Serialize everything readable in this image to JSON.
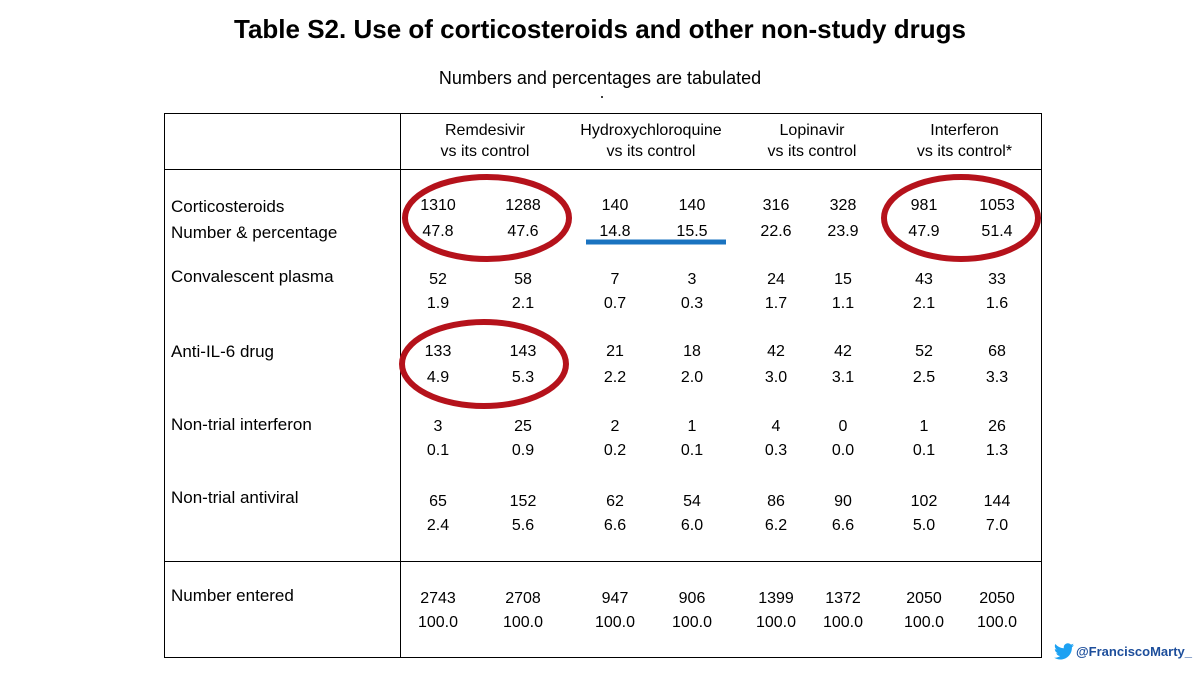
{
  "title": "Table S2. Use of corticosteroids and other non-study drugs",
  "subtitle": "Numbers and percentages are tabulated",
  "columns": [
    {
      "line1": "Remdesivir",
      "line2": "vs its control"
    },
    {
      "line1": "Hydroxychloroquine",
      "line2": "vs its control"
    },
    {
      "line1": "Lopinavir",
      "line2": "vs its control"
    },
    {
      "line1": "Interferon",
      "line2": "vs its control*"
    }
  ],
  "rows": [
    {
      "label": "Corticosteroids",
      "label2": "Number & percentage",
      "n": [
        "1310",
        "1288",
        "140",
        "140",
        "316",
        "328",
        "981",
        "1053"
      ],
      "p": [
        "47.8",
        "47.6",
        "14.8",
        "15.5",
        "22.6",
        "23.9",
        "47.9",
        "51.4"
      ]
    },
    {
      "label": "Convalescent plasma",
      "n": [
        "52",
        "58",
        "7",
        "3",
        "24",
        "15",
        "43",
        "33"
      ],
      "p": [
        "1.9",
        "2.1",
        "0.7",
        "0.3",
        "1.7",
        "1.1",
        "2.1",
        "1.6"
      ]
    },
    {
      "label": "Anti-IL-6 drug",
      "n": [
        "133",
        "143",
        "21",
        "18",
        "42",
        "42",
        "52",
        "68"
      ],
      "p": [
        "4.9",
        "5.3",
        "2.2",
        "2.0",
        "3.0",
        "3.1",
        "2.5",
        "3.3"
      ]
    },
    {
      "label": "Non-trial interferon",
      "n": [
        "3",
        "25",
        "2",
        "1",
        "4",
        "0",
        "1",
        "26"
      ],
      "p": [
        "0.1",
        "0.9",
        "0.2",
        "0.1",
        "0.3",
        "0.0",
        "0.1",
        "1.3"
      ]
    },
    {
      "label": "Non-trial antiviral",
      "n": [
        "65",
        "152",
        "62",
        "54",
        "86",
        "90",
        "102",
        "144"
      ],
      "p": [
        "2.4",
        "5.6",
        "6.6",
        "6.0",
        "6.2",
        "6.6",
        "5.0",
        "7.0"
      ]
    },
    {
      "label": "Number entered",
      "n": [
        "2743",
        "2708",
        "947",
        "906",
        "1399",
        "1372",
        "2050",
        "2050"
      ],
      "p": [
        "100.0",
        "100.0",
        "100.0",
        "100.0",
        "100.0",
        "100.0",
        "100.0",
        "100.0"
      ]
    }
  ],
  "annotation_colors": {
    "circle": "#b5121b",
    "underline": "#1a73c0"
  },
  "credit": {
    "handle": "@FranciscoMarty_",
    "icon": "twitter-bird-icon",
    "icon_color": "#1da1f2"
  }
}
